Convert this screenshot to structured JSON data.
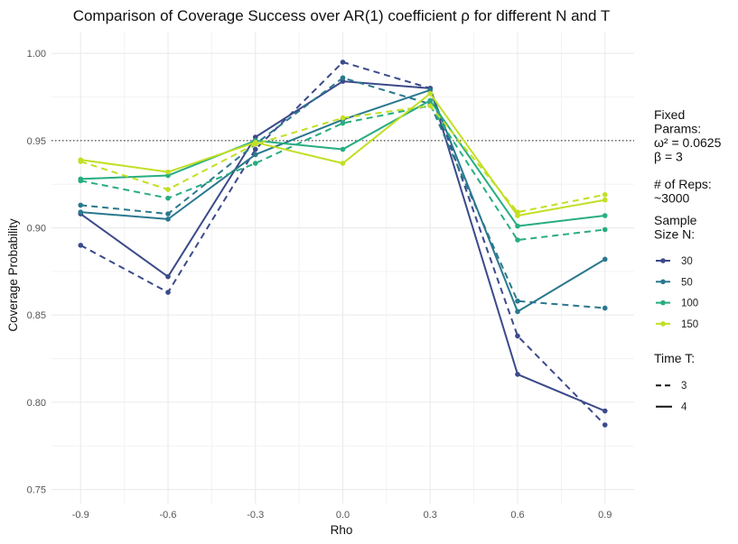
{
  "chart_data": {
    "type": "line",
    "title": "Comparison of Coverage Success over AR(1) coefficient ρ for different N and T",
    "xlabel": "Rho",
    "ylabel": "Coverage Probability",
    "x": [
      -0.9,
      -0.6,
      -0.3,
      0.0,
      0.3,
      0.6,
      0.9
    ],
    "x_tick_labels": [
      "-0.9",
      "-0.6",
      "-0.3",
      "0.0",
      "0.3",
      "0.6",
      "0.9"
    ],
    "xlim": [
      -1.0,
      1.0
    ],
    "ylim": [
      0.742,
      1.012
    ],
    "y_ticks": [
      0.75,
      0.8,
      0.85,
      0.9,
      0.95,
      1.0
    ],
    "y_tick_labels": [
      "0.75",
      "0.80",
      "0.85",
      "0.90",
      "0.95",
      "1.00"
    ],
    "reference_line": {
      "y": 0.95,
      "style": "dotted"
    },
    "grid": true,
    "series": [
      {
        "n": "30",
        "t": "3",
        "color": "#3b4a8a",
        "dash": true,
        "values": [
          0.89,
          0.863,
          0.945,
          0.995,
          0.98,
          0.838,
          0.787
        ]
      },
      {
        "n": "30",
        "t": "4",
        "color": "#3b4a8a",
        "dash": false,
        "values": [
          0.908,
          0.872,
          0.952,
          0.984,
          0.98,
          0.816,
          0.795
        ]
      },
      {
        "n": "50",
        "t": "3",
        "color": "#2a788e",
        "dash": true,
        "values": [
          0.913,
          0.908,
          0.948,
          0.986,
          0.971,
          0.858,
          0.854
        ]
      },
      {
        "n": "50",
        "t": "4",
        "color": "#2a788e",
        "dash": false,
        "values": [
          0.909,
          0.905,
          0.942,
          0.962,
          0.979,
          0.852,
          0.882
        ]
      },
      {
        "n": "100",
        "t": "3",
        "color": "#27ad81",
        "dash": true,
        "values": [
          0.927,
          0.917,
          0.937,
          0.96,
          0.97,
          0.893,
          0.899
        ]
      },
      {
        "n": "100",
        "t": "4",
        "color": "#27ad81",
        "dash": false,
        "values": [
          0.928,
          0.93,
          0.95,
          0.945,
          0.973,
          0.901,
          0.907
        ]
      },
      {
        "n": "150",
        "t": "3",
        "color": "#c2df23",
        "dash": true,
        "values": [
          0.938,
          0.922,
          0.948,
          0.963,
          0.97,
          0.909,
          0.919
        ]
      },
      {
        "n": "150",
        "t": "4",
        "color": "#c2df23",
        "dash": false,
        "values": [
          0.939,
          0.932,
          0.949,
          0.937,
          0.977,
          0.907,
          0.916
        ]
      }
    ],
    "legend": {
      "placement": "right",
      "fixed_params_lines": [
        "Fixed",
        "Params:",
        "ω² = 0.0625",
        "β = 3"
      ],
      "reps_lines": [
        "# of Reps:",
        "~3000"
      ],
      "n_title_lines": [
        "Sample",
        "Size N:"
      ],
      "n_items": [
        {
          "label": "30",
          "color": "#3b4a8a"
        },
        {
          "label": "50",
          "color": "#2a788e"
        },
        {
          "label": "100",
          "color": "#27ad81"
        },
        {
          "label": "150",
          "color": "#c2df23"
        }
      ],
      "t_title": "Time T:",
      "t_items": [
        {
          "label": "3",
          "dash": true
        },
        {
          "label": "4",
          "dash": false
        }
      ]
    }
  }
}
